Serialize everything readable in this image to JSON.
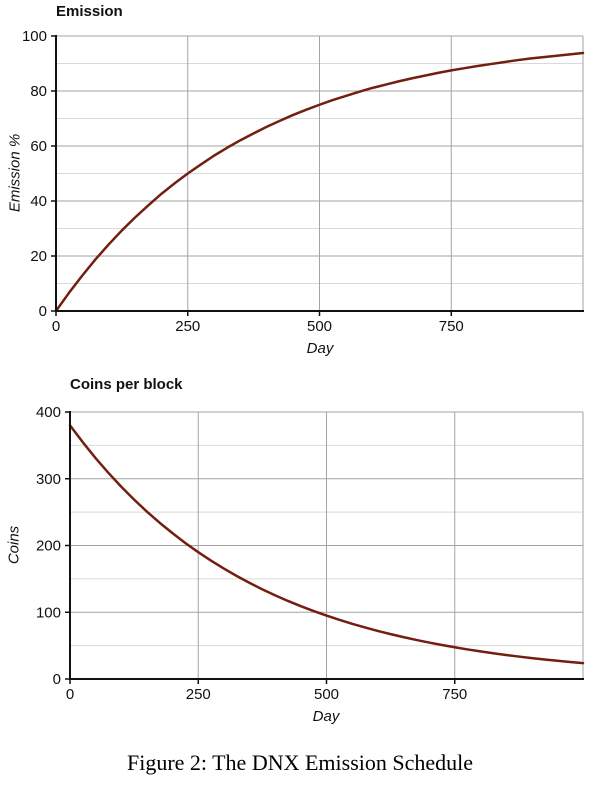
{
  "caption": "Figure 2: The DNX Emission Schedule",
  "colors": {
    "curve": "#731f10",
    "grid_major": "#a3a3a3",
    "grid_minor": "#d9d9d9",
    "axis": "#111111",
    "text": "#111111",
    "background": "#ffffff"
  },
  "chart_data": [
    {
      "type": "line",
      "title": "Emission",
      "xlabel": "Day",
      "ylabel": "Emission %",
      "series_name": "emission-percent-curve",
      "xlim": [
        0,
        1000
      ],
      "ylim": [
        0,
        100
      ],
      "x_ticks": [
        0,
        250,
        500,
        750
      ],
      "y_ticks": [
        0,
        20,
        40,
        60,
        80,
        100
      ],
      "y_minor_step": 10,
      "grid": true,
      "legend": "none",
      "x": [
        0,
        25,
        50,
        75,
        100,
        125,
        150,
        175,
        200,
        225,
        250,
        275,
        300,
        325,
        350,
        375,
        400,
        425,
        450,
        475,
        500,
        525,
        550,
        575,
        600,
        625,
        650,
        675,
        700,
        725,
        750,
        775,
        800,
        825,
        850,
        875,
        900,
        925,
        950,
        975,
        1000
      ],
      "y": [
        0,
        6.7,
        12.9,
        18.8,
        24.2,
        29.3,
        34.0,
        38.4,
        42.6,
        46.4,
        50.0,
        53.3,
        56.5,
        59.4,
        62.1,
        64.6,
        67.0,
        69.2,
        71.3,
        73.2,
        75.0,
        76.7,
        78.2,
        79.7,
        81.1,
        82.3,
        83.5,
        84.6,
        85.6,
        86.6,
        87.5,
        88.3,
        89.1,
        89.8,
        90.5,
        91.2,
        91.8,
        92.3,
        92.8,
        93.3,
        93.8
      ]
    },
    {
      "type": "line",
      "title": "Coins per block",
      "xlabel": "Day",
      "ylabel": "Coins",
      "series_name": "coins-per-block-curve",
      "xlim": [
        0,
        1000
      ],
      "ylim": [
        0,
        400
      ],
      "x_ticks": [
        0,
        250,
        500,
        750
      ],
      "y_ticks": [
        0,
        100,
        200,
        300,
        400
      ],
      "y_minor_step": 50,
      "grid": true,
      "legend": "none",
      "x": [
        0,
        25,
        50,
        75,
        100,
        125,
        150,
        175,
        200,
        225,
        250,
        275,
        300,
        325,
        350,
        375,
        400,
        425,
        450,
        475,
        500,
        525,
        550,
        575,
        600,
        625,
        650,
        675,
        700,
        725,
        750,
        775,
        800,
        825,
        850,
        875,
        900,
        925,
        950,
        975,
        1000
      ],
      "y": [
        380,
        354.6,
        330.8,
        308.7,
        288.0,
        268.7,
        250.7,
        233.9,
        218.3,
        203.6,
        190.0,
        177.3,
        165.4,
        154.3,
        144.0,
        134.3,
        125.3,
        116.9,
        109.1,
        101.8,
        95.0,
        88.6,
        82.7,
        77.2,
        72.0,
        67.2,
        62.7,
        58.5,
        54.6,
        50.9,
        47.5,
        44.3,
        41.4,
        38.6,
        36.0,
        33.6,
        31.3,
        29.2,
        27.3,
        25.5,
        23.8
      ]
    }
  ]
}
